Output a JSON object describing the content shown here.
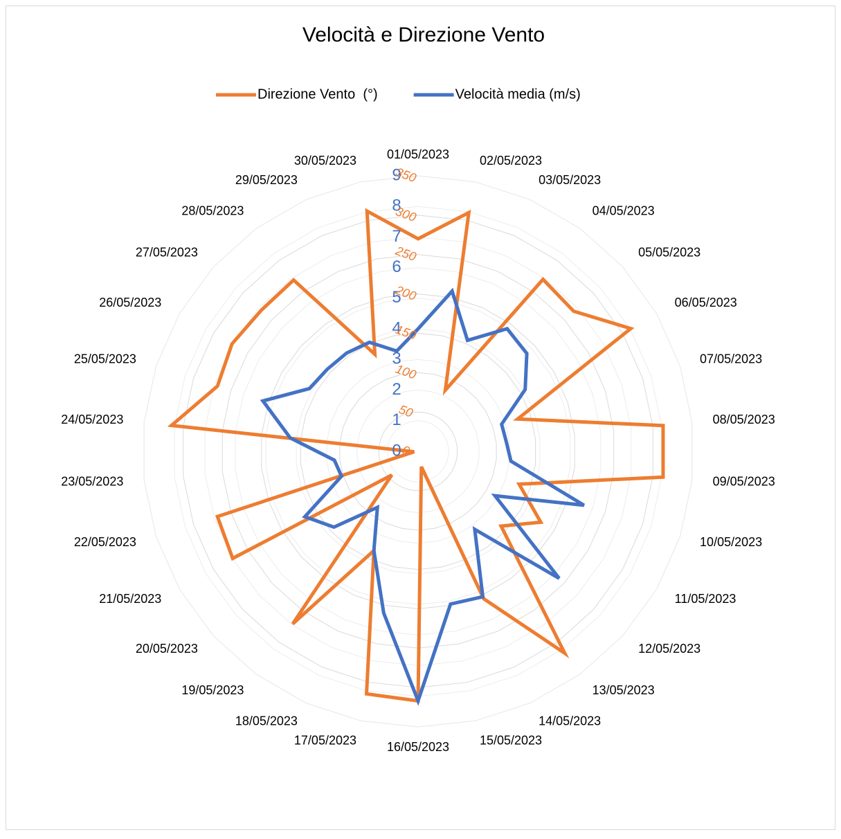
{
  "chart_data": {
    "type": "radar",
    "title": "Velocità e Direzione Vento",
    "categories": [
      "01/05/2023",
      "02/05/2023",
      "03/05/2023",
      "04/05/2023",
      "05/05/2023",
      "06/05/2023",
      "07/05/2023",
      "08/05/2023",
      "09/05/2023",
      "10/05/2023",
      "11/05/2023",
      "12/05/2023",
      "13/05/2023",
      "14/05/2023",
      "15/05/2023",
      "16/05/2023",
      "17/05/2023",
      "18/05/2023",
      "19/05/2023",
      "20/05/2023",
      "21/05/2023",
      "22/05/2023",
      "23/05/2023",
      "24/05/2023",
      "25/05/2023",
      "26/05/2023",
      "27/05/2023",
      "28/05/2023",
      "29/05/2023",
      "30/05/2023"
    ],
    "series": [
      {
        "name": "Direzione Vento  (°)",
        "color": "#ed7d31",
        "axis": "y2",
        "values": [
          270,
          310,
          85,
          270,
          266,
          312,
          133,
          313,
          313,
          135,
          180,
          142,
          317,
          205,
          20,
          317,
          315,
          138,
          271,
          45,
          272,
          268,
          5,
          315,
          268,
          273,
          268,
          269,
          135,
          312
        ]
      },
      {
        "name": "Velocità media (m/s)",
        "color": "#4472c4",
        "values": [
          4.0,
          5.35,
          3.97,
          4.95,
          4.78,
          4.04,
          2.87,
          2.9,
          3.05,
          5.7,
          2.9,
          6.2,
          3.15,
          5.2,
          5.1,
          8.15,
          5.4,
          3.55,
          2.26,
          3.7,
          4.27,
          2.63,
          2.75,
          4.2,
          5.33,
          4.1,
          4.0,
          3.97,
          3.9,
          3.35
        ]
      }
    ],
    "ylim": [
      0,
      9
    ],
    "yticks": [
      0,
      1,
      2,
      3,
      4,
      5,
      6,
      7,
      8,
      9
    ],
    "y2lim": [
      0,
      350
    ],
    "y2ticks": [
      0,
      50,
      100,
      150,
      200,
      250,
      300,
      350
    ],
    "grid": true,
    "legend": "top"
  }
}
